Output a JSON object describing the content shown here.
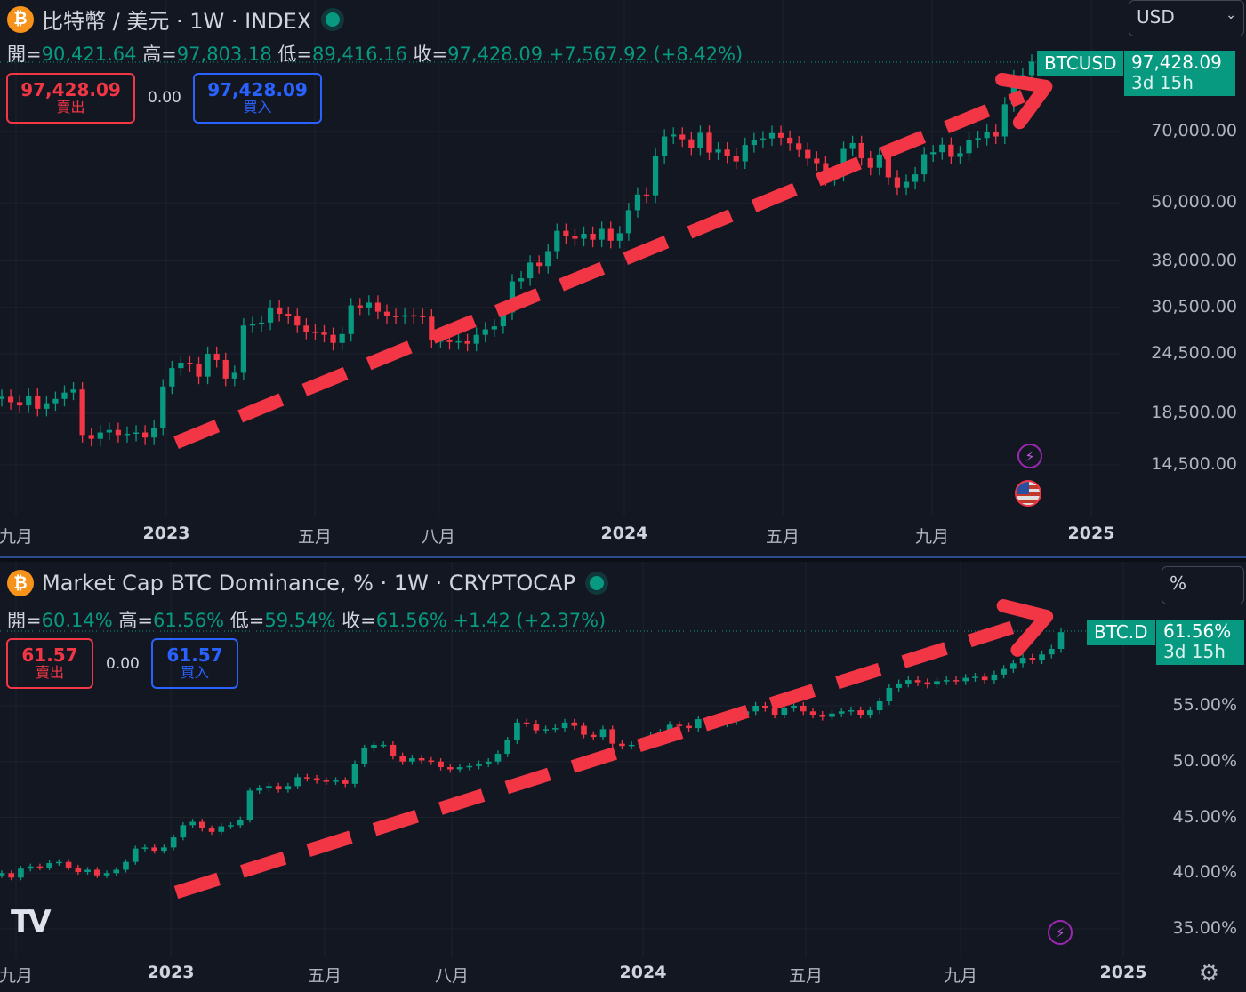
{
  "charts": [
    {
      "title": "比特幣 / 美元 · 1W · INDEX",
      "coin_symbol": "₿",
      "ohlc": {
        "open_label": "開=",
        "open": "90,421.64",
        "high_label": "高=",
        "high": "97,803.18",
        "low_label": "低=",
        "low": "89,416.16",
        "close_label": "收=",
        "close": "97,428.09",
        "change": "+7,567.92 (+8.42%)"
      },
      "sell_price": "97,428.09",
      "sell_label": "賣出",
      "spread": "0.00",
      "buy_price": "97,428.09",
      "buy_label": "買入",
      "currency": "USD",
      "symbol_tag": "BTCUSD",
      "last_price": "97,428.09",
      "countdown": "3d 15h",
      "y_ticks": [
        "70,000.00",
        "50,000.00",
        "38,000.00",
        "30,500.00",
        "24,500.00",
        "18,500.00",
        "14,500.00"
      ],
      "x_ticks": [
        "九月",
        "2023",
        "五月",
        "八月",
        "2024",
        "五月",
        "九月",
        "2025"
      ],
      "bold_x_ticks": [
        "2023",
        "2024",
        "2025"
      ]
    },
    {
      "title": "Market Cap BTC Dominance, % · 1W · CRYPTOCAP",
      "coin_symbol": "₿",
      "ohlc": {
        "open_label": "開=",
        "open": "60.14%",
        "high_label": "高=",
        "high": "61.56%",
        "low_label": "低=",
        "low": "59.54%",
        "close_label": "收=",
        "close": "61.56%",
        "change": "+1.42 (+2.37%)"
      },
      "sell_price": "61.57",
      "sell_label": "賣出",
      "spread": "0.00",
      "buy_price": "61.57",
      "buy_label": "買入",
      "currency": "%",
      "symbol_tag": "BTC.D",
      "last_price": "61.56%",
      "countdown": "3d 15h",
      "y_ticks": [
        "55.00%",
        "50.00%",
        "45.00%",
        "40.00%",
        "35.00%"
      ],
      "x_ticks": [
        "九月",
        "2023",
        "五月",
        "八月",
        "2024",
        "五月",
        "九月",
        "2025"
      ],
      "bold_x_ticks": [
        "2023",
        "2024",
        "2025"
      ]
    }
  ],
  "chart_data": [
    {
      "type": "candlestick",
      "interval": "1W",
      "y_scale": "log",
      "y_ticks": [
        70000,
        50000,
        38000,
        30500,
        24500,
        18500,
        14500
      ],
      "x_start": "2022-09",
      "x_end": "2024-11",
      "closes": [
        20000,
        19500,
        19200,
        20100,
        18900,
        19400,
        19800,
        20400,
        20700,
        16700,
        16400,
        16900,
        17100,
        16700,
        16800,
        16900,
        16500,
        17300,
        21000,
        22900,
        23500,
        23300,
        22000,
        24500,
        23800,
        21800,
        22400,
        28000,
        28200,
        28400,
        30500,
        29600,
        29300,
        28000,
        27200,
        27100,
        26800,
        25800,
        26900,
        30800,
        30500,
        31200,
        29900,
        29300,
        29200,
        29400,
        29300,
        29200,
        26100,
        26100,
        25900,
        26000,
        25700,
        26800,
        27500,
        27900,
        29800,
        34500,
        35000,
        37700,
        37100,
        39800,
        43800,
        42700,
        42200,
        43200,
        42000,
        44200,
        41800,
        43300,
        48300,
        52000,
        51800,
        62400,
        68400,
        69000,
        67500,
        64900,
        69600,
        63400,
        64300,
        62500,
        60800,
        65700,
        67200,
        67800,
        69500,
        68000,
        66200,
        64200,
        61600,
        60300,
        56200,
        57300,
        64500,
        66300,
        61700,
        59000,
        62800,
        56400,
        53800,
        55200,
        57200,
        62900,
        63500,
        65800,
        62100,
        63200,
        67300,
        67900,
        69900,
        68400,
        79600,
        90400,
        91400,
        97400
      ]
    },
    {
      "type": "candlestick",
      "interval": "1W",
      "y_scale": "linear",
      "ylim": [
        34,
        62
      ],
      "y_ticks": [
        55,
        50,
        45,
        40,
        35
      ],
      "x_start": "2022-09",
      "x_end": "2024-11",
      "closes": [
        40.0,
        39.6,
        40.4,
        40.6,
        40.5,
        40.9,
        41.0,
        40.5,
        40.1,
        40.3,
        39.8,
        40.0,
        40.3,
        41.0,
        42.2,
        42.3,
        42.0,
        42.3,
        43.2,
        44.3,
        44.6,
        44.0,
        43.7,
        44.2,
        44.3,
        44.8,
        47.4,
        47.6,
        47.8,
        47.5,
        47.8,
        48.6,
        48.5,
        48.3,
        48.2,
        48.3,
        48.0,
        49.8,
        51.2,
        51.5,
        51.5,
        50.5,
        50.0,
        50.3,
        50.1,
        50.0,
        49.5,
        49.3,
        49.5,
        49.6,
        49.8,
        50.0,
        50.7,
        51.9,
        53.5,
        53.4,
        52.8,
        52.9,
        53.0,
        53.5,
        53.2,
        52.4,
        52.2,
        52.9,
        51.6,
        51.4,
        51.5,
        51.8,
        52.3,
        52.6,
        53.3,
        53.2,
        53.0,
        53.8,
        53.5,
        53.4,
        53.6,
        54.2,
        54.5,
        55.0,
        54.8,
        54.2,
        54.8,
        55.0,
        54.5,
        54.2,
        54.0,
        54.3,
        54.5,
        54.6,
        54.2,
        54.6,
        55.4,
        56.6,
        57.0,
        57.3,
        57.1,
        56.9,
        57.2,
        57.3,
        57.2,
        57.5,
        57.6,
        57.3,
        57.8,
        58.3,
        58.8,
        59.3,
        59.1,
        59.6,
        60.1,
        61.6
      ]
    }
  ]
}
